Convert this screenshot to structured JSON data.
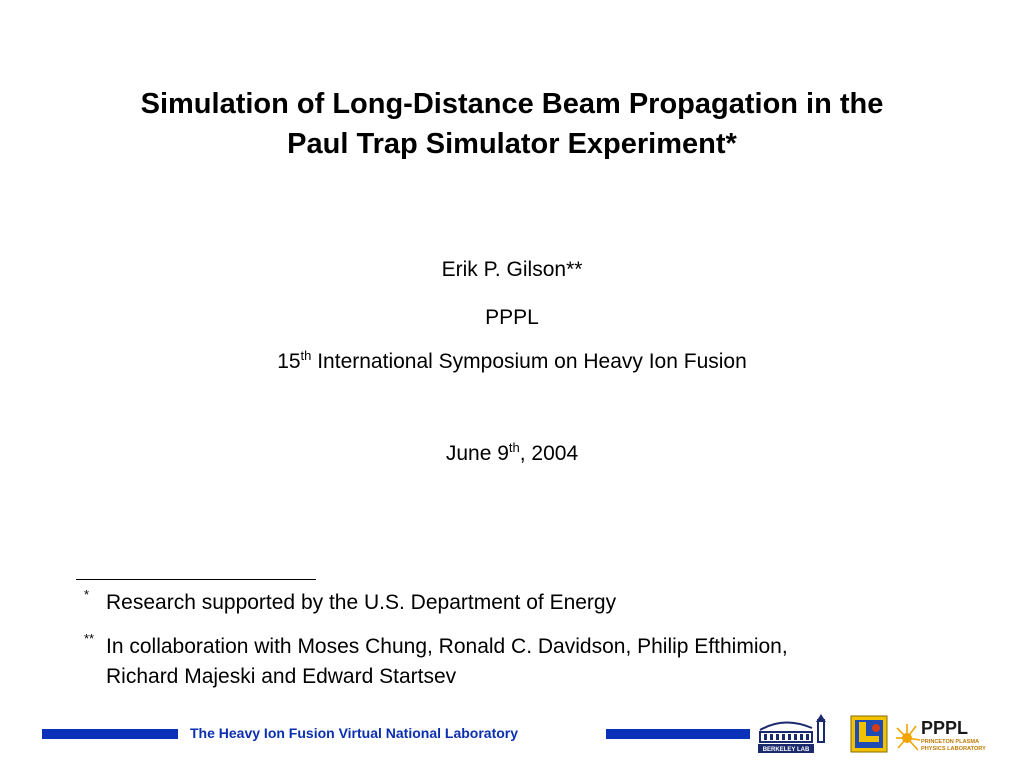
{
  "title": {
    "line1": "Simulation of Long-Distance Beam Propagation in the",
    "line2": "Paul Trap Simulator Experiment*"
  },
  "author": "Erik P. Gilson**",
  "affiliation": "PPPL",
  "symposium": {
    "number": "15",
    "suffix": "th",
    "text": " International Symposium on Heavy Ion Fusion"
  },
  "date": {
    "prefix": "June 9",
    "suffix": "th",
    "rest": ", 2004"
  },
  "footnotes": [
    {
      "mark": "*",
      "text": "Research supported by the U.S. Department of Energy"
    },
    {
      "mark": "**",
      "line1": "In collaboration with Moses Chung, Ronald C. Davidson, Philip Efthimion,",
      "line2": "Richard Majeski and Edward Startsev"
    }
  ],
  "footer": {
    "label": "The Heavy Ion Fusion Virtual National Laboratory",
    "bar_color": "#0b31b8",
    "logos": {
      "berkeley": {
        "icon": "berkeley-lab-logo",
        "text": "BERKELEY LAB"
      },
      "llnl": {
        "icon": "llnl-logo"
      },
      "pppl": {
        "icon": "pppl-logo",
        "text": "PPPL",
        "subtext1": "PRINCETON PLASMA",
        "subtext2": "PHYSICS LABORATORY"
      }
    }
  }
}
